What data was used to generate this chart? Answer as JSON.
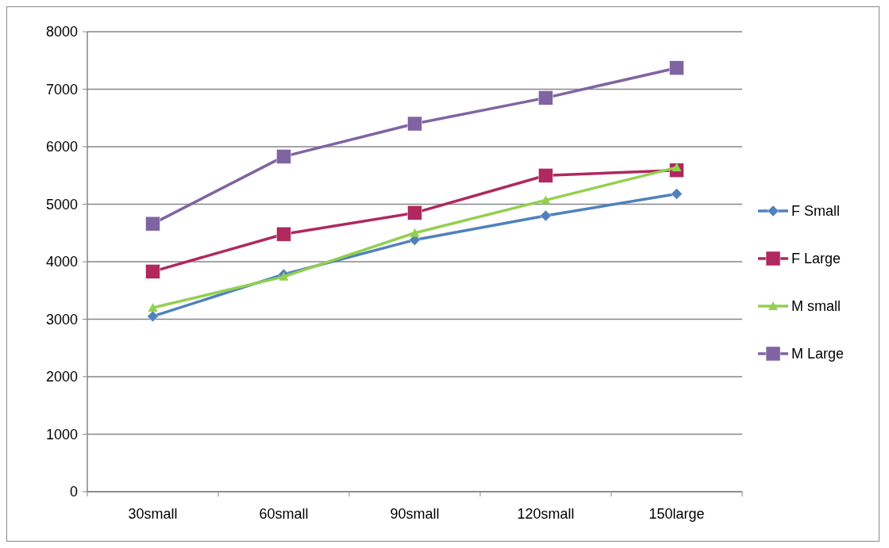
{
  "chart_data": {
    "type": "line",
    "categories": [
      "30small",
      "60small",
      "90small",
      "120small",
      "150large"
    ],
    "series": [
      {
        "name": "F Small",
        "color": "#4f81bd",
        "marker": "diamond",
        "values": [
          3050,
          3780,
          4380,
          4800,
          5180
        ]
      },
      {
        "name": "F Large",
        "color": "#b0285f",
        "marker": "square",
        "values": [
          3830,
          4480,
          4850,
          5500,
          5590
        ]
      },
      {
        "name": "M small",
        "color": "#92d050",
        "marker": "triangle",
        "values": [
          3200,
          3740,
          4500,
          5070,
          5640
        ]
      },
      {
        "name": "M Large",
        "color": "#8064a2",
        "marker": "square",
        "values": [
          4660,
          5830,
          6400,
          6850,
          7370
        ]
      }
    ],
    "ylim": [
      0,
      8000
    ],
    "yticks": [
      0,
      1000,
      2000,
      3000,
      4000,
      5000,
      6000,
      7000,
      8000
    ],
    "grid": "y",
    "legend": "right",
    "line_style": "solid"
  }
}
